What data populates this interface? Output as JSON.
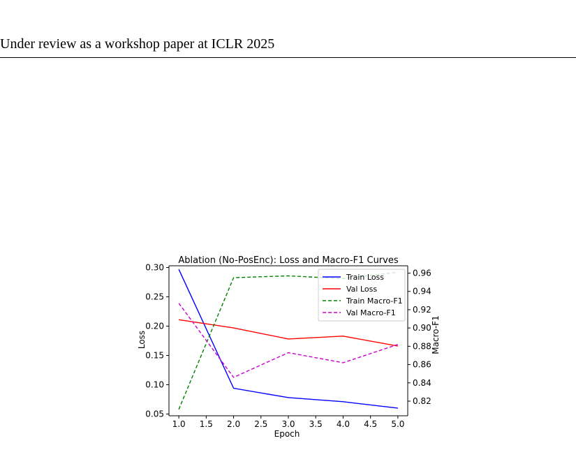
{
  "header": {
    "text": "Under review as a workshop paper at ICLR 2025"
  },
  "chart_data": {
    "type": "line",
    "title": "Ablation (No-PosEnc): Loss and Macro-F1 Curves",
    "xlabel": "Epoch",
    "ylabel": "Loss",
    "y2label": "Macro-F1",
    "x": [
      1,
      2,
      3,
      4,
      5
    ],
    "xticks": [
      "1.0",
      "1.5",
      "2.0",
      "2.5",
      "3.0",
      "3.5",
      "4.0",
      "4.5",
      "5.0"
    ],
    "yticks": [
      "0.05",
      "0.10",
      "0.15",
      "0.20",
      "0.25",
      "0.30"
    ],
    "y2ticks": [
      "0.82",
      "0.84",
      "0.86",
      "0.88",
      "0.90",
      "0.92",
      "0.94",
      "0.96"
    ],
    "ylim": [
      0.05,
      0.3
    ],
    "y2lim": [
      0.82,
      0.96
    ],
    "legend_position": "top-right",
    "series": [
      {
        "name": "Train Loss",
        "axis": "left",
        "style": "solid",
        "color": "#0000ff",
        "values": [
          0.297,
          0.094,
          0.078,
          0.071,
          0.06
        ]
      },
      {
        "name": "Val Loss",
        "axis": "right_is_left",
        "style": "solid",
        "color": "#ff0000",
        "values": [
          0.211,
          0.197,
          0.178,
          0.183,
          0.166
        ]
      },
      {
        "name": "Train Macro-F1",
        "axis": "right",
        "style": "dashed",
        "color": "#008000",
        "values": [
          0.811,
          0.955,
          0.957,
          0.954,
          0.961
        ]
      },
      {
        "name": "Val Macro-F1",
        "axis": "right",
        "style": "dashed",
        "color": "#cc00cc",
        "values": [
          0.927,
          0.846,
          0.873,
          0.862,
          0.882
        ]
      }
    ]
  }
}
